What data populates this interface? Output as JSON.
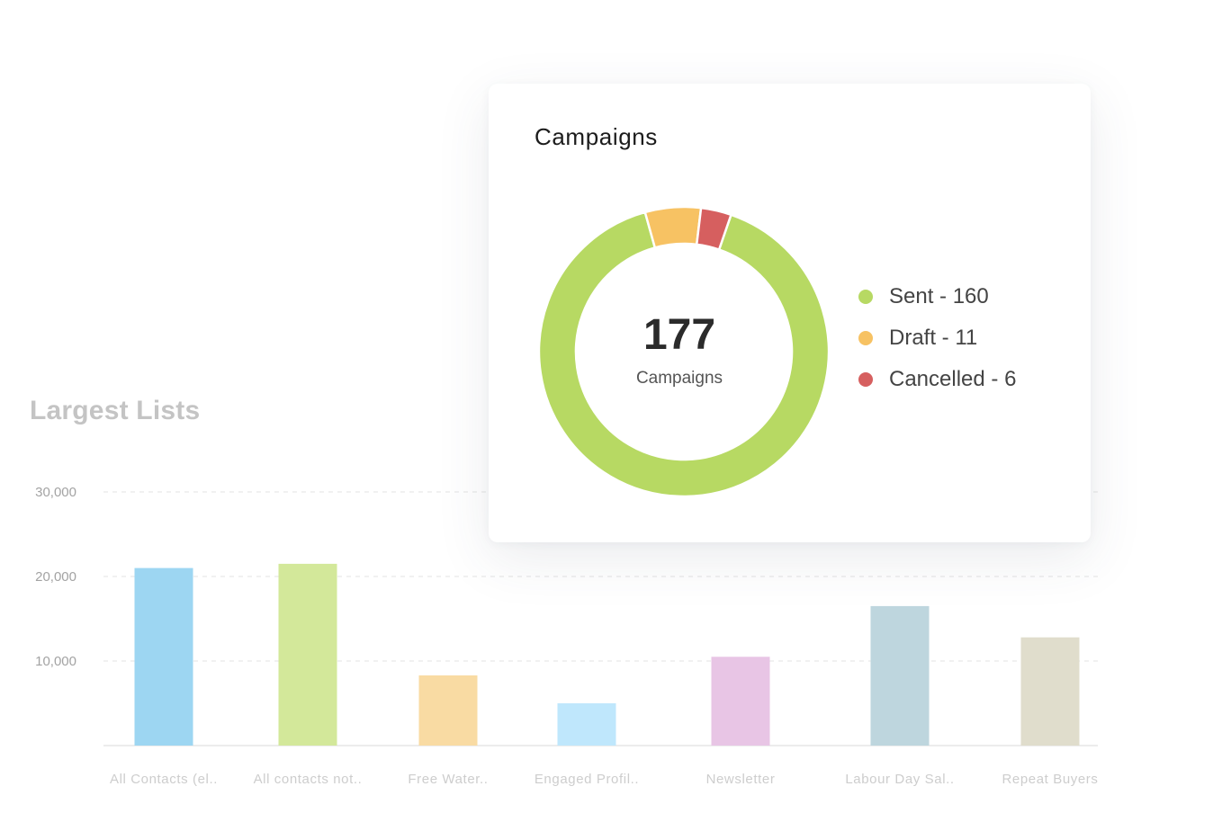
{
  "chart_data": [
    {
      "type": "pie",
      "title": "Campaigns",
      "total": {
        "value": "177",
        "label": "Campaigns"
      },
      "slices": [
        {
          "name": "Sent",
          "value": 160,
          "color": "#b7d963",
          "legend": "Sent - 160"
        },
        {
          "name": "Draft",
          "value": 11,
          "color": "#f7c263",
          "legend": "Draft - 11"
        },
        {
          "name": "Cancelled",
          "value": 6,
          "color": "#d65f5f",
          "legend": "Cancelled - 6"
        }
      ],
      "legend_position": "right"
    },
    {
      "type": "bar",
      "title": "Largest Lists",
      "categories": [
        "All Contacts (el..",
        "All contacts not..",
        "Free Water..",
        "Engaged Profil..",
        "Newsletter",
        "Labour Day Sal..",
        "Repeat Buyers"
      ],
      "values": [
        21000,
        21500,
        8300,
        5000,
        10500,
        16500,
        12800
      ],
      "colors": [
        "#9dd6f2",
        "#d3e89a",
        "#f9dba3",
        "#bfe7fc",
        "#e8c5e5",
        "#bed6de",
        "#e0ddcc"
      ],
      "y_ticks": [
        "30,000",
        "20,000",
        "10,000"
      ],
      "y_tick_values": [
        30000,
        20000,
        10000
      ],
      "ylim": [
        0,
        30000
      ],
      "grid": true
    }
  ]
}
